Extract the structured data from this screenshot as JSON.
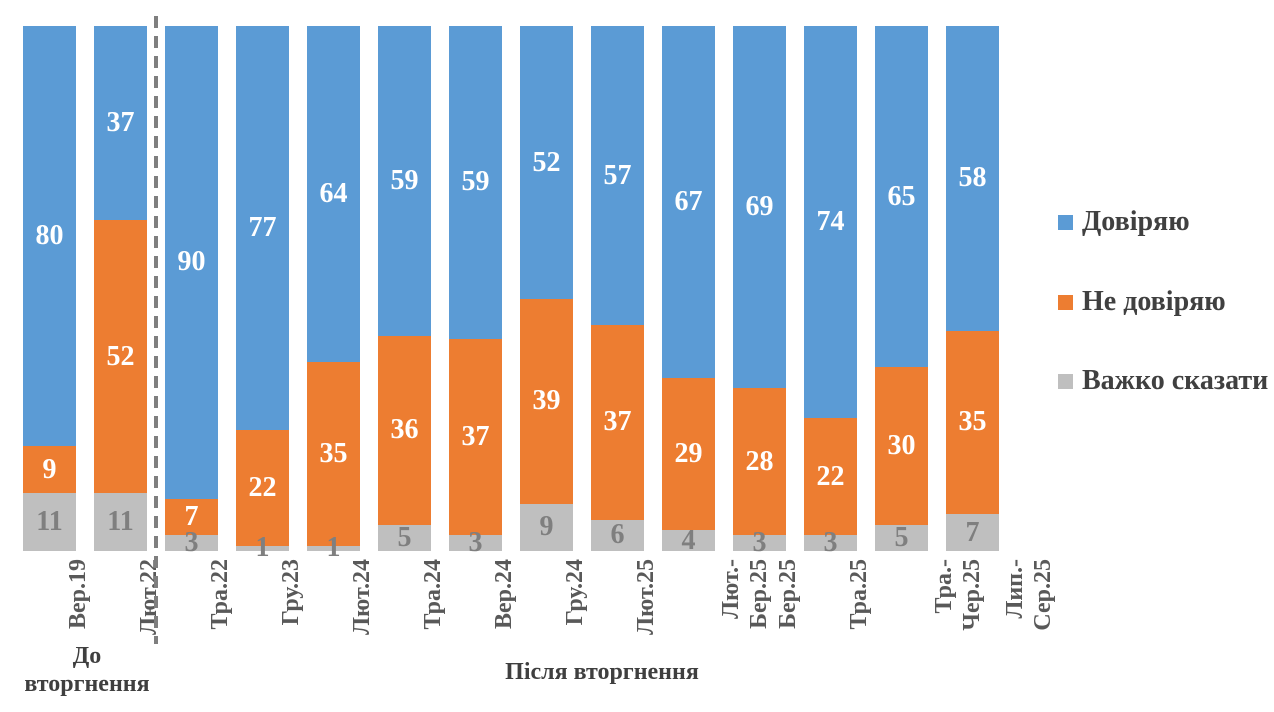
{
  "chart_data": {
    "type": "bar",
    "stacked": true,
    "unit": "percent",
    "categories": [
      "Вер.19",
      "Лют.22",
      "Тра.22",
      "Гру.23",
      "Лют.24",
      "Тра.24",
      "Вер.24",
      "Гру.24",
      "Лют.25",
      "Лют.-\nБер.25",
      "Бер.25",
      "Тра.25",
      "Тра.-\nЧер.25",
      "Лип.-\nСер.25"
    ],
    "series": [
      {
        "name": "Довіряю",
        "color": "#5B9BD5",
        "label_color": "#FFFFFF",
        "values": [
          80,
          37,
          90,
          77,
          64,
          59,
          59,
          52,
          57,
          67,
          69,
          74,
          65,
          58
        ]
      },
      {
        "name": "Не довіряю",
        "color": "#ED7D31",
        "label_color": "#FFFFFF",
        "values": [
          9,
          52,
          7,
          22,
          35,
          36,
          37,
          39,
          37,
          29,
          28,
          22,
          30,
          35
        ]
      },
      {
        "name": "Важко сказати",
        "color": "#BFBFBF",
        "label_color": "#7F7F7F",
        "values": [
          11,
          11,
          3,
          1,
          1,
          5,
          3,
          9,
          6,
          4,
          3,
          3,
          5,
          7
        ]
      }
    ],
    "groups": [
      {
        "label": "До\nвторгнення",
        "start_index": 0,
        "end_index": 1
      },
      {
        "label": "Після вторгнення",
        "start_index": 2,
        "end_index": 13
      }
    ],
    "divider_after_index": 1,
    "legend_position": "right",
    "ylim": [
      0,
      100
    ],
    "grid": false,
    "title": "",
    "xlabel": "",
    "ylabel": ""
  },
  "divider_color": "#7F7F7F",
  "axis_label_color": "#595959",
  "group_label_color": "#3F3F3F",
  "legend_text_color": "#404040"
}
